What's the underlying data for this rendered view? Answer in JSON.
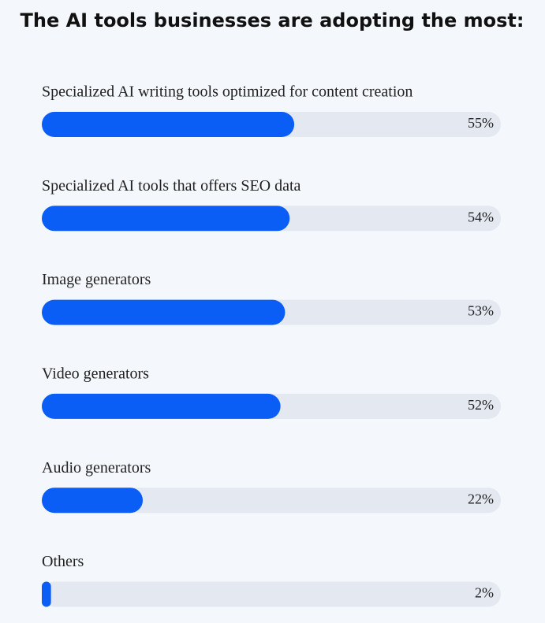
{
  "chart_data": {
    "type": "bar",
    "orientation": "horizontal",
    "title": "The AI tools businesses are adopting the most:",
    "categories": [
      "Specialized AI writing tools optimized for content creation",
      "Specialized AI tools that offers SEO data",
      "Image generators",
      "Video generators",
      "Audio generators",
      "Others"
    ],
    "values": [
      55,
      54,
      53,
      52,
      22,
      2
    ],
    "value_labels": [
      "55%",
      "54%",
      "53%",
      "52%",
      "22%",
      "2%"
    ],
    "color": "#0b5ef5",
    "xlim": [
      0,
      100
    ]
  }
}
